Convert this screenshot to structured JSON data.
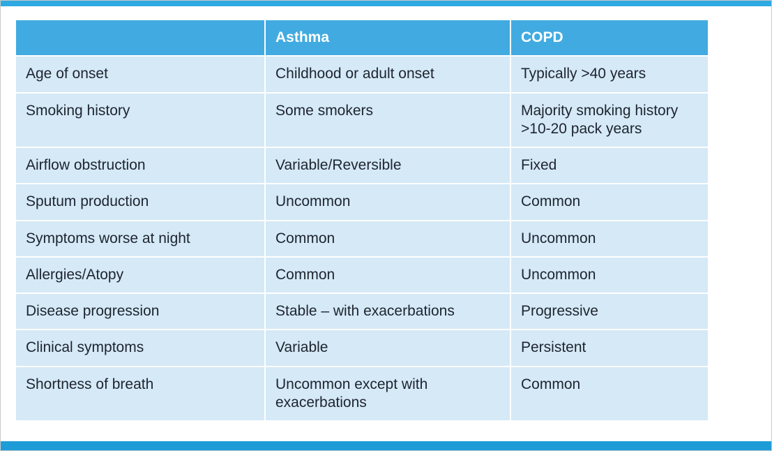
{
  "slide": {
    "accent_top_color": "#2fa9e1",
    "accent_bottom_color": "#1e9cd8",
    "header_fill_color": "#41abe1",
    "row_fill_color": "#d5e9f6"
  },
  "table": {
    "header": [
      "",
      "Asthma",
      "COPD"
    ],
    "rows": [
      {
        "feature": "Age of onset",
        "asthma": "Childhood or adult onset",
        "copd": "Typically >40 years"
      },
      {
        "feature": "Smoking history",
        "asthma": "Some smokers",
        "copd": "Majority smoking history >10-20 pack years"
      },
      {
        "feature": "Airflow obstruction",
        "asthma": "Variable/Reversible",
        "copd": "Fixed"
      },
      {
        "feature": "Sputum production",
        "asthma": "Uncommon",
        "copd": "Common"
      },
      {
        "feature": "Symptoms worse at night",
        "asthma": "Common",
        "copd": "Uncommon"
      },
      {
        "feature": "Allergies/Atopy",
        "asthma": "Common",
        "copd": "Uncommon"
      },
      {
        "feature": "Disease progression",
        "asthma": "Stable – with exacerbations",
        "copd": "Progressive"
      },
      {
        "feature": "Clinical symptoms",
        "asthma": "Variable",
        "copd": "Persistent"
      },
      {
        "feature": "Shortness of breath",
        "asthma": "Uncommon except with exacerbations",
        "copd": "Common"
      }
    ]
  }
}
